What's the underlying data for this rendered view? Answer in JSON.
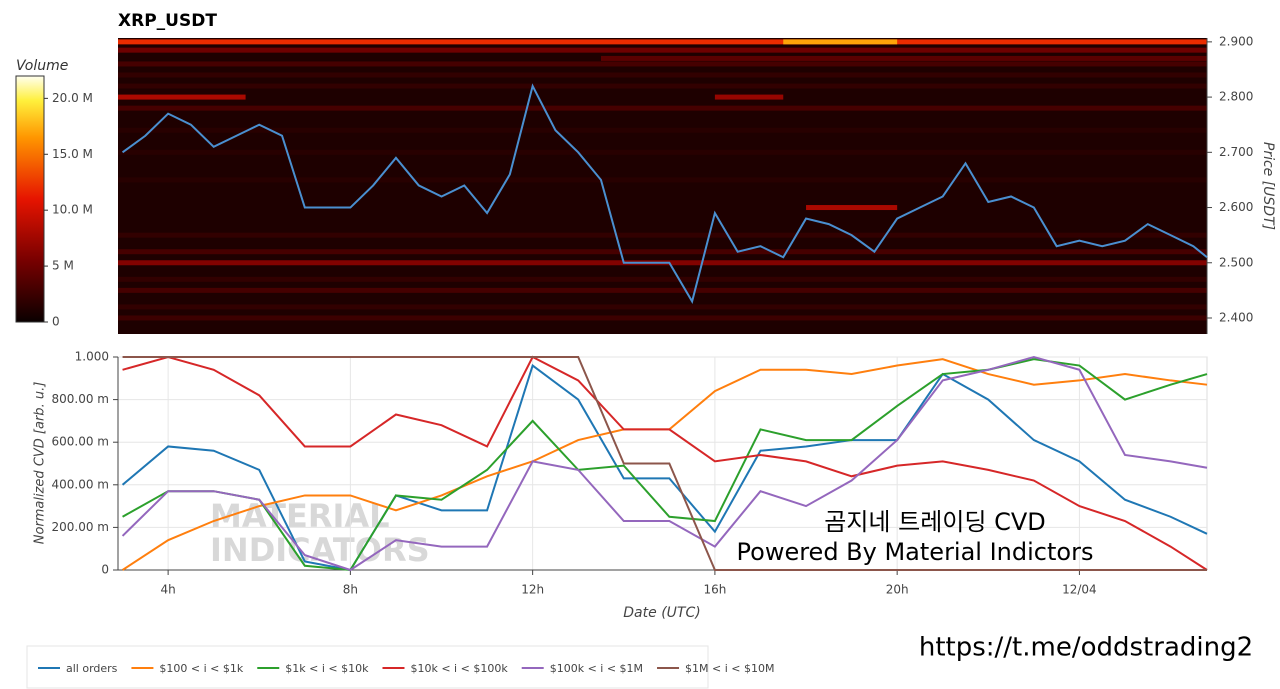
{
  "chart_data": [
    {
      "type": "heatmap",
      "title": "XRP_USDT",
      "y_label": "Price [USDT]",
      "colorbar_label": "Volume",
      "clim": [
        0,
        22
      ],
      "cticks": [
        0,
        {
          "value": 5,
          "label": "5 M"
        },
        {
          "value": 10,
          "label": "10.0 M"
        },
        {
          "value": 15,
          "label": "15.0 M"
        },
        {
          "value": 20,
          "label": "20.0 M"
        }
      ],
      "xlim": [
        2.9,
        26.8
      ],
      "ylim": [
        2.371,
        2.907
      ],
      "yticks": [
        {
          "value": 2.4,
          "label": "2.400"
        },
        {
          "value": 2.5,
          "label": "2.500"
        },
        {
          "value": 2.6,
          "label": "2.600"
        },
        {
          "value": 2.7,
          "label": "2.700"
        },
        {
          "value": 2.8,
          "label": "2.800"
        },
        {
          "value": 2.9,
          "label": "2.900"
        }
      ],
      "liquidity": [
        {
          "price": 2.9,
          "start": 2.9,
          "end": 26.8,
          "volume": 12
        },
        {
          "price": 2.9,
          "start": 17.5,
          "end": 20,
          "volume": 17
        },
        {
          "price": 2.885,
          "start": 2.9,
          "end": 26.8,
          "volume": 5
        },
        {
          "price": 2.87,
          "start": 13.5,
          "end": 26.8,
          "volume": 4
        },
        {
          "price": 2.86,
          "start": 2.9,
          "end": 26.8,
          "volume": 3
        },
        {
          "price": 2.84,
          "start": 2.9,
          "end": 26.8,
          "volume": 2
        },
        {
          "price": 2.82,
          "start": 2.9,
          "end": 26.8,
          "volume": 2
        },
        {
          "price": 2.8,
          "start": 2.9,
          "end": 5.7,
          "volume": 8
        },
        {
          "price": 2.8,
          "start": 16,
          "end": 17.5,
          "volume": 7
        },
        {
          "price": 2.78,
          "start": 2.9,
          "end": 26.8,
          "volume": 3
        },
        {
          "price": 2.74,
          "start": 2.9,
          "end": 26.8,
          "volume": 1.5
        },
        {
          "price": 2.7,
          "start": 2.9,
          "end": 26.8,
          "volume": 1.5
        },
        {
          "price": 2.65,
          "start": 2.9,
          "end": 26.8,
          "volume": 1.5
        },
        {
          "price": 2.6,
          "start": 18,
          "end": 20,
          "volume": 8
        },
        {
          "price": 2.55,
          "start": 2.9,
          "end": 26.8,
          "volume": 2
        },
        {
          "price": 2.52,
          "start": 2.9,
          "end": 26.8,
          "volume": 3
        },
        {
          "price": 2.5,
          "start": 2.9,
          "end": 26.8,
          "volume": 6
        },
        {
          "price": 2.47,
          "start": 2.9,
          "end": 26.8,
          "volume": 2
        },
        {
          "price": 2.45,
          "start": 2.9,
          "end": 26.8,
          "volume": 3
        },
        {
          "price": 2.42,
          "start": 2.9,
          "end": 26.8,
          "volume": 2
        },
        {
          "price": 2.4,
          "start": 2.9,
          "end": 26.8,
          "volume": 2.5
        }
      ],
      "price": {
        "color": "#4a8fd0",
        "x": [
          3,
          3.5,
          4,
          4.5,
          5,
          5.5,
          6,
          6.5,
          7,
          7.5,
          8,
          8.5,
          9,
          9.5,
          10,
          10.5,
          11,
          11.5,
          12,
          12.5,
          13,
          13.5,
          14,
          14.5,
          15,
          15.5,
          16,
          16.5,
          17,
          17.5,
          18,
          18.5,
          19,
          19.5,
          20,
          20.5,
          21,
          21.5,
          22,
          22.5,
          23,
          23.5,
          24,
          24.5,
          25,
          25.5,
          26,
          26.5,
          26.8
        ],
        "values": [
          2.7,
          2.73,
          2.77,
          2.75,
          2.71,
          2.73,
          2.75,
          2.73,
          2.6,
          2.6,
          2.6,
          2.64,
          2.69,
          2.64,
          2.62,
          2.64,
          2.59,
          2.66,
          2.82,
          2.74,
          2.7,
          2.65,
          2.5,
          2.5,
          2.5,
          2.43,
          2.59,
          2.52,
          2.53,
          2.51,
          2.58,
          2.57,
          2.55,
          2.52,
          2.58,
          2.6,
          2.62,
          2.68,
          2.61,
          2.62,
          2.6,
          2.53,
          2.54,
          2.53,
          2.54,
          2.57,
          2.55,
          2.53,
          2.51
        ]
      }
    },
    {
      "type": "line",
      "x_label": "Date (UTC)",
      "y_label": "Normalized CVD [arb. u.]",
      "xlim": [
        2.9,
        26.8
      ],
      "xticks": [
        {
          "value": 4,
          "label": "4h"
        },
        {
          "value": 8,
          "label": "8h"
        },
        {
          "value": 12,
          "label": "12h"
        },
        {
          "value": 16,
          "label": "16h"
        },
        {
          "value": 20,
          "label": "20h"
        },
        {
          "value": 24,
          "label": "12/04"
        }
      ],
      "ylim": [
        0,
        1
      ],
      "yticks": [
        0,
        {
          "value": 0.2,
          "label": "200.00 m"
        },
        {
          "value": 0.4,
          "label": "400.00 m"
        },
        {
          "value": 0.6,
          "label": "600.00 m"
        },
        {
          "value": 0.8,
          "label": "800.00 m"
        },
        {
          "value": 1,
          "label": "1.000"
        }
      ],
      "grid": true,
      "legend": "below",
      "x": [
        3,
        4,
        5,
        6,
        7,
        8,
        9,
        10,
        11,
        12,
        13,
        14,
        15,
        16,
        17,
        18,
        19,
        20,
        21,
        22,
        23,
        24,
        25,
        26,
        26.8
      ],
      "series": [
        {
          "name": "all orders",
          "color": "#1f77b4",
          "values": [
            0.4,
            0.58,
            0.56,
            0.47,
            0.04,
            0,
            0.35,
            0.28,
            0.28,
            0.96,
            0.8,
            0.43,
            0.43,
            0.18,
            0.56,
            0.58,
            0.61,
            0.61,
            0.92,
            0.8,
            0.61,
            0.51,
            0.33,
            0.25,
            0.17
          ]
        },
        {
          "name": "$100 < i < $1k",
          "color": "#ff7f0e",
          "values": [
            0,
            0.14,
            0.23,
            0.3,
            0.35,
            0.35,
            0.28,
            0.35,
            0.44,
            0.51,
            0.61,
            0.66,
            0.66,
            0.84,
            0.94,
            0.94,
            0.92,
            0.96,
            0.99,
            0.92,
            0.87,
            0.89,
            0.92,
            0.89,
            0.87
          ]
        },
        {
          "name": "$1k < i < $10k",
          "color": "#2ca02c",
          "values": [
            0.25,
            0.37,
            0.37,
            0.33,
            0.02,
            0,
            0.35,
            0.33,
            0.47,
            0.7,
            0.47,
            0.49,
            0.25,
            0.23,
            0.66,
            0.61,
            0.61,
            0.77,
            0.92,
            0.94,
            0.99,
            0.96,
            0.8,
            0.87,
            0.92
          ]
        },
        {
          "name": "$10k < i < $100k",
          "color": "#d62728",
          "values": [
            0.94,
            1,
            0.94,
            0.82,
            0.58,
            0.58,
            0.73,
            0.68,
            0.58,
            1,
            0.89,
            0.66,
            0.66,
            0.51,
            0.54,
            0.51,
            0.44,
            0.49,
            0.51,
            0.47,
            0.42,
            0.3,
            0.23,
            0.11,
            0
          ]
        },
        {
          "name": "$100k < i < $1M",
          "color": "#9467bd",
          "values": [
            0.16,
            0.37,
            0.37,
            0.33,
            0.07,
            0,
            0.14,
            0.11,
            0.11,
            0.51,
            0.47,
            0.23,
            0.23,
            0.11,
            0.37,
            0.3,
            0.42,
            0.61,
            0.89,
            0.94,
            1,
            0.94,
            0.54,
            0.51,
            0.48
          ]
        },
        {
          "name": "$1M < i < $10M",
          "color": "#8c564b",
          "values": [
            1,
            1,
            1,
            1,
            1,
            1,
            1,
            1,
            1,
            1,
            1,
            0.5,
            0.5,
            0,
            0,
            0,
            0,
            0,
            0,
            0,
            0,
            0,
            0,
            0,
            0
          ]
        }
      ],
      "watermark": [
        "MATERIAL",
        "INDICATORS"
      ],
      "annotations": [
        "곰지네 트레이딩 CVD",
        "Powered By Material Indictors",
        "https://t.me/oddstrading2"
      ]
    }
  ]
}
